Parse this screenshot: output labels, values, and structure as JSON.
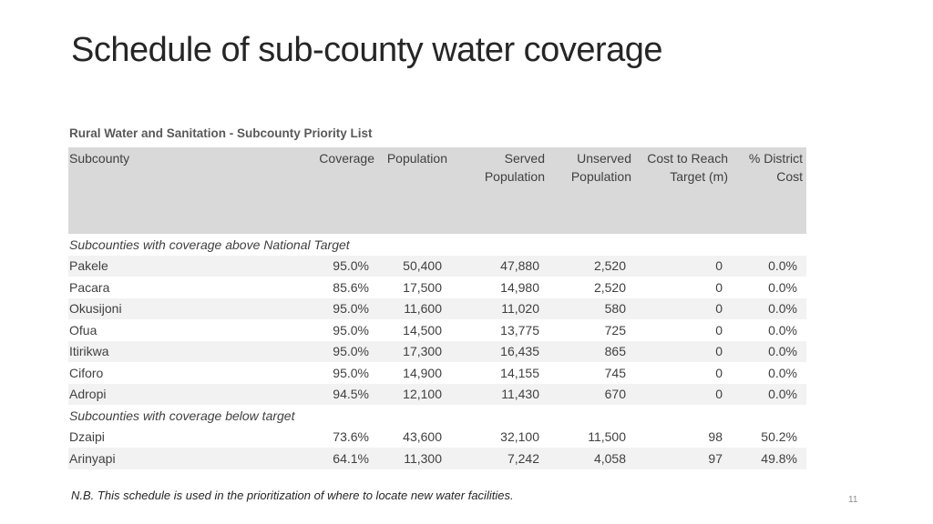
{
  "title": "Schedule of sub-county water coverage",
  "table": {
    "caption": "Rural Water and Sanitation - Subcounty Priority List",
    "columns": [
      [
        "Subcounty"
      ],
      [
        "Coverage"
      ],
      [
        "Population"
      ],
      [
        "Served",
        "Population"
      ],
      [
        "Unserved",
        "Population"
      ],
      [
        "Cost to Reach",
        "Target (m)"
      ],
      [
        "% District",
        "Cost"
      ]
    ],
    "groups": [
      {
        "label": "Subcounties with coverage above National Target",
        "rows": [
          [
            "Pakele",
            "95.0%",
            "50,400",
            "47,880",
            "2,520",
            "0",
            "0.0%"
          ],
          [
            "Pacara",
            "85.6%",
            "17,500",
            "14,980",
            "2,520",
            "0",
            "0.0%"
          ],
          [
            "Okusijoni",
            "95.0%",
            "11,600",
            "11,020",
            "580",
            "0",
            "0.0%"
          ],
          [
            "Ofua",
            "95.0%",
            "14,500",
            "13,775",
            "725",
            "0",
            "0.0%"
          ],
          [
            "Itirikwa",
            "95.0%",
            "17,300",
            "16,435",
            "865",
            "0",
            "0.0%"
          ],
          [
            "Ciforo",
            "95.0%",
            "14,900",
            "14,155",
            "745",
            "0",
            "0.0%"
          ],
          [
            "Adropi",
            "94.5%",
            "12,100",
            "11,430",
            "670",
            "0",
            "0.0%"
          ]
        ]
      },
      {
        "label": "Subcounties with coverage below target",
        "rows": [
          [
            "Dzaipi",
            "73.6%",
            "43,600",
            "32,100",
            "11,500",
            "98",
            "50.2%"
          ],
          [
            "Arinyapi",
            "64.1%",
            "11,300",
            "7,242",
            "4,058",
            "97",
            "49.8%"
          ]
        ]
      }
    ]
  },
  "note": "N.B. This schedule is used in the prioritization of where to locate new water facilities.",
  "page_number": "11"
}
